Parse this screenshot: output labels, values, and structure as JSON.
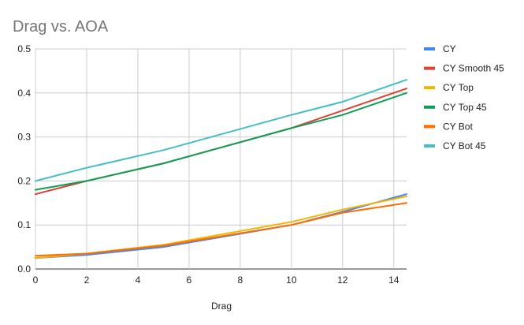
{
  "chart_data": {
    "type": "line",
    "title": "Drag vs. AOA",
    "xlabel": "Drag",
    "ylabel": "",
    "xlim": [
      0,
      14.5
    ],
    "ylim": [
      0,
      0.5
    ],
    "xticks": [
      0,
      2,
      4,
      6,
      8,
      10,
      12,
      14
    ],
    "yticks": [
      0.0,
      0.1,
      0.2,
      0.3,
      0.4,
      0.5
    ],
    "xtick_labels": [
      "0",
      "2",
      "4",
      "6",
      "8",
      "10",
      "12",
      "14"
    ],
    "ytick_labels": [
      "0.0",
      "0.1",
      "0.2",
      "0.3",
      "0.4",
      "0.5"
    ],
    "grid": true,
    "legend_position": "right",
    "x": [
      0,
      2,
      5,
      10,
      12,
      14.5
    ],
    "series": [
      {
        "name": "CY",
        "color": "#4285F4",
        "values": [
          0.025,
          0.032,
          0.05,
          0.1,
          0.13,
          0.17
        ]
      },
      {
        "name": "CY Smooth 45",
        "color": "#DB4437",
        "values": [
          0.17,
          0.2,
          0.24,
          0.32,
          0.36,
          0.41
        ]
      },
      {
        "name": "CY Top",
        "color": "#F4B400",
        "values": [
          0.025,
          0.035,
          0.055,
          0.107,
          0.135,
          0.165
        ]
      },
      {
        "name": "CY Top 45",
        "color": "#0F9D58",
        "values": [
          0.18,
          0.2,
          0.24,
          0.32,
          0.35,
          0.4
        ]
      },
      {
        "name": "CY Bot",
        "color": "#FF6D01",
        "values": [
          0.03,
          0.035,
          0.053,
          0.1,
          0.128,
          0.15
        ]
      },
      {
        "name": "CY Bot 45",
        "color": "#46BDC6",
        "values": [
          0.2,
          0.23,
          0.27,
          0.35,
          0.38,
          0.43
        ]
      }
    ]
  }
}
